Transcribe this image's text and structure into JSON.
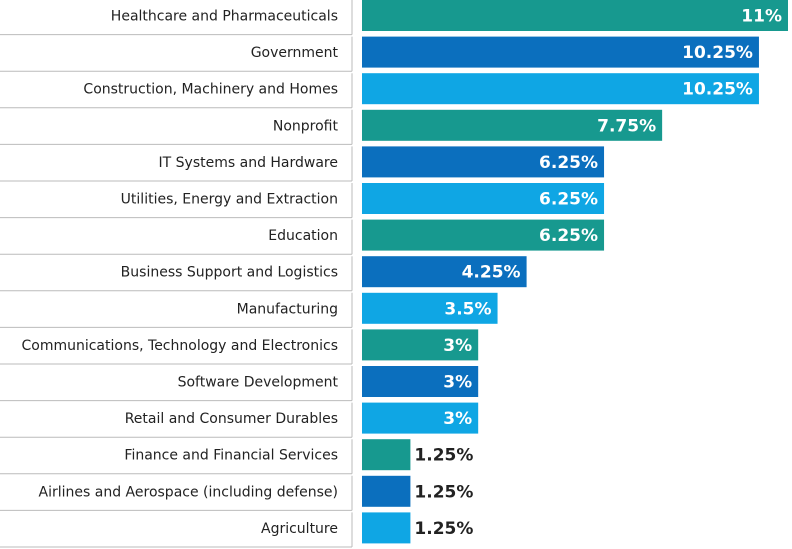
{
  "chart_data": {
    "type": "bar",
    "orientation": "horizontal",
    "categories": [
      "Healthcare and Pharmaceuticals",
      "Government",
      "Construction, Machinery and Homes",
      "Nonprofit",
      "IT Systems and Hardware",
      "Utilities, Energy and Extraction",
      "Education",
      "Business Support and Logistics",
      "Manufacturing",
      "Communications, Technology and Electronics",
      "Software Development",
      "Retail and Consumer Durables",
      "Finance and Financial Services",
      "Airlines and Aerospace (including defense)",
      "Agriculture"
    ],
    "values": [
      11,
      10.25,
      10.25,
      7.75,
      6.25,
      6.25,
      6.25,
      4.25,
      3.5,
      3,
      3,
      3,
      1.25,
      1.25,
      1.25
    ],
    "value_labels": [
      "11%",
      "10.25%",
      "10.25%",
      "7.75%",
      "6.25%",
      "6.25%",
      "6.25%",
      "4.25%",
      "3.5%",
      "3%",
      "3%",
      "3%",
      "1.25%",
      "1.25%",
      "1.25%"
    ],
    "colors": [
      "#17998f",
      "#0b6fbe",
      "#0fa6e4"
    ]
  }
}
